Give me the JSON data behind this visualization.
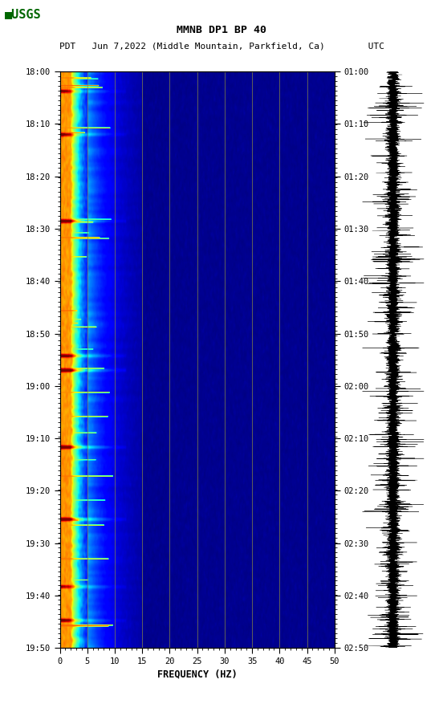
{
  "title_line1": "MMNB DP1 BP 40",
  "title_line2": "PDT   Jun 7,2022 (Middle Mountain, Parkfield, Ca)        UTC",
  "xlabel": "FREQUENCY (HZ)",
  "freq_min": 0,
  "freq_max": 50,
  "freq_ticks": [
    0,
    5,
    10,
    15,
    20,
    25,
    30,
    35,
    40,
    45,
    50
  ],
  "freq_tick_labels": [
    "0",
    "5",
    "10",
    "15",
    "20",
    "25",
    "30",
    "35",
    "40",
    "45",
    "50"
  ],
  "time_left_labels": [
    "18:00",
    "18:10",
    "18:20",
    "18:30",
    "18:40",
    "18:50",
    "19:00",
    "19:10",
    "19:20",
    "19:30",
    "19:40",
    "19:50"
  ],
  "time_right_labels": [
    "01:00",
    "01:10",
    "01:20",
    "01:30",
    "01:40",
    "01:50",
    "02:00",
    "02:10",
    "02:20",
    "02:30",
    "02:40",
    "02:50"
  ],
  "n_time_steps": 600,
  "n_freq_bins": 500,
  "background_color": "#ffffff",
  "grid_color": "#888844",
  "grid_alpha": 0.7,
  "usgs_color": "#006600"
}
